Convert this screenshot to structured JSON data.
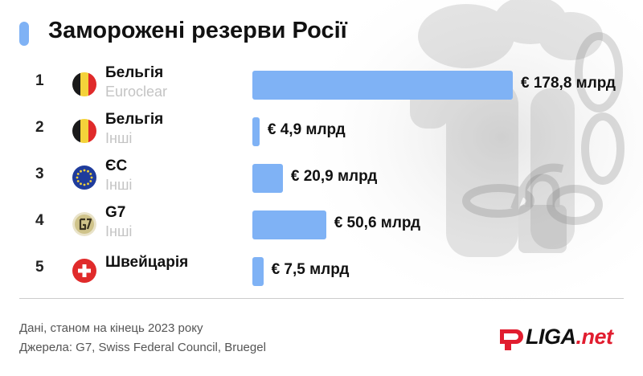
{
  "title": "Заморожені резерви Росії",
  "chart_data": {
    "type": "bar",
    "orientation": "horizontal",
    "categories": [
      "Бельгія — Euroclear",
      "Бельгія — Інші",
      "ЄС — Інші",
      "G7 — Інші",
      "Швейцарія"
    ],
    "values": [
      178.8,
      4.9,
      20.9,
      50.6,
      7.5
    ],
    "unit": "€ млрд",
    "rows": [
      {
        "rank": "1",
        "name": "Бельгія",
        "sub": "Euroclear",
        "icon": "belgium-flag-icon",
        "value": 178.8,
        "label": "€ 178,8 млрд"
      },
      {
        "rank": "2",
        "name": "Бельгія",
        "sub": "Інші",
        "icon": "belgium-flag-icon",
        "value": 4.9,
        "label": "€ 4,9 млрд"
      },
      {
        "rank": "3",
        "name": "ЄС",
        "sub": "Інші",
        "icon": "eu-flag-icon",
        "value": 20.9,
        "label": "€ 20,9 млрд"
      },
      {
        "rank": "4",
        "name": "G7",
        "sub": "Інші",
        "icon": "g7-logo-icon",
        "value": 50.6,
        "label": "€ 50,6 млрд"
      },
      {
        "rank": "5",
        "name": "Швейцарія",
        "sub": "",
        "icon": "switzerland-flag-icon",
        "value": 7.5,
        "label": "€ 7,5 млрд"
      }
    ],
    "colors": {
      "bar": "#7fb2f5"
    },
    "grid": false,
    "legend": "none"
  },
  "footer": {
    "note": "Дані, станом на кінець 2023 року",
    "sources": "Джерела: G7, Swiss Federal Council, Bruegel"
  },
  "logo": {
    "main": "LIGA",
    "suffix": ".net",
    "accent": "#e11d2f"
  },
  "background_art": "chained-currency-rolls-and-padlock"
}
